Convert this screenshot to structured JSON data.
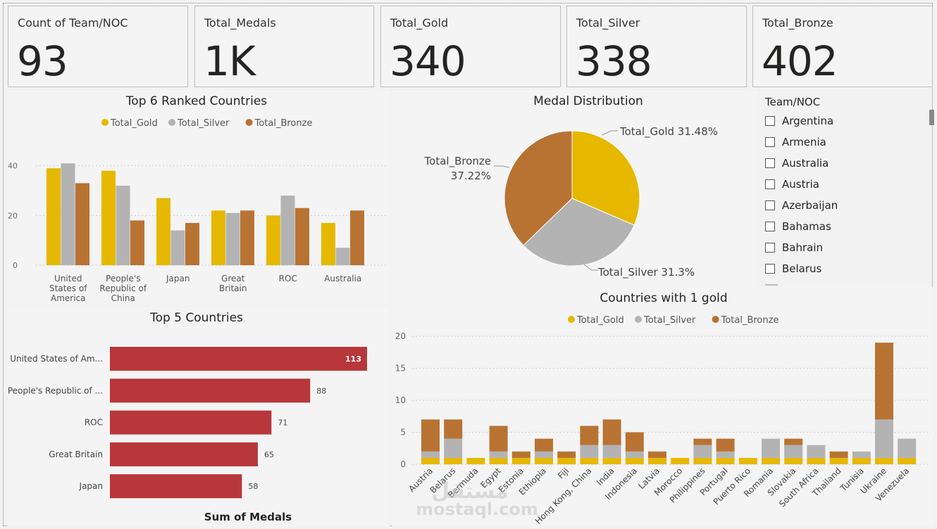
{
  "kpis": [
    {
      "label": "Count of Team/NOC",
      "value": "93"
    },
    {
      "label": "Total_Medals",
      "value": "1K"
    },
    {
      "label": "Total_Gold",
      "value": "340"
    },
    {
      "label": "Total_Silver",
      "value": "338"
    },
    {
      "label": "Total_Bronze",
      "value": "402"
    }
  ],
  "colors": {
    "gold": "#e6b800",
    "silver": "#b3b3b3",
    "bronze": "#b87333",
    "bar": "#b8373a"
  },
  "slicer": {
    "title": "Team/NOC",
    "items": [
      "Argentina",
      "Armenia",
      "Australia",
      "Austria",
      "Azerbaijan",
      "Bahamas",
      "Bahrain",
      "Belarus"
    ]
  },
  "chart_data": [
    {
      "type": "bar",
      "title": "Top 6 Ranked Countries",
      "legend": [
        "Total_Gold",
        "Total_Silver",
        "Total_Bronze"
      ],
      "categories": [
        [
          "United",
          "States of",
          "America"
        ],
        [
          "People's",
          "Republic of",
          "China"
        ],
        [
          "Japan"
        ],
        [
          "Great",
          "Britain"
        ],
        [
          "ROC"
        ],
        [
          "Australia"
        ]
      ],
      "series": [
        {
          "name": "Total_Gold",
          "values": [
            39,
            38,
            27,
            22,
            20,
            17
          ]
        },
        {
          "name": "Total_Silver",
          "values": [
            41,
            32,
            14,
            21,
            28,
            7
          ]
        },
        {
          "name": "Total_Bronze",
          "values": [
            33,
            18,
            17,
            22,
            23,
            22
          ]
        }
      ],
      "yticks": [
        "0",
        "20",
        "40"
      ],
      "ylim": [
        0,
        45
      ],
      "grid": true
    },
    {
      "type": "pie",
      "title": "Medal Distribution",
      "slices": [
        {
          "name": "Total_Gold",
          "value": 340,
          "label": "Total_Gold 31.48%"
        },
        {
          "name": "Total_Silver",
          "value": 338,
          "label": "Total_Silver 31.3%"
        },
        {
          "name": "Total_Bronze",
          "value": 402,
          "label_line1": "Total_Bronze",
          "label_line2": "37.22%"
        }
      ]
    },
    {
      "type": "bar",
      "orientation": "horizontal",
      "title": "Top 5 Countries",
      "xlabel": "Sum of Medals",
      "categories": [
        "United States of Am...",
        "People's Republic of ...",
        "ROC",
        "Great Britain",
        "Japan"
      ],
      "values": [
        113,
        88,
        71,
        65,
        58
      ],
      "value_labels": [
        "113",
        "88",
        "71",
        "65",
        "58"
      ]
    },
    {
      "type": "bar",
      "stacked": true,
      "title": "Countries with 1 gold",
      "legend": [
        "Total_Gold",
        "Total_Silver",
        "Total_Bronze"
      ],
      "categories": [
        "Austria",
        "Belarus",
        "Bermuda",
        "Egypt",
        "Estonia",
        "Ethiopia",
        "Fiji",
        "Hong Kong, China",
        "India",
        "Indonesia",
        "Latvia",
        "Morocco",
        "Philippines",
        "Portugal",
        "Puerto Rico",
        "Romania",
        "Slovakia",
        "South Africa",
        "Thailand",
        "Tunisia",
        "Ukraine",
        "Venezuela"
      ],
      "series": [
        {
          "name": "Total_Gold",
          "values": [
            1,
            1,
            1,
            1,
            1,
            1,
            1,
            1,
            1,
            1,
            1,
            1,
            1,
            1,
            1,
            1,
            1,
            1,
            1,
            1,
            1,
            1
          ]
        },
        {
          "name": "Total_Silver",
          "values": [
            1,
            3,
            0,
            1,
            0,
            1,
            0,
            2,
            2,
            1,
            0,
            0,
            2,
            1,
            0,
            3,
            2,
            2,
            0,
            1,
            6,
            3
          ]
        },
        {
          "name": "Total_Bronze",
          "values": [
            5,
            3,
            0,
            4,
            1,
            2,
            1,
            3,
            4,
            3,
            1,
            0,
            1,
            2,
            0,
            0,
            1,
            0,
            1,
            0,
            12,
            0
          ]
        }
      ],
      "yticks": [
        "0",
        "5",
        "10",
        "15",
        "20"
      ],
      "ylim": [
        0,
        20
      ],
      "grid": true
    }
  ],
  "watermark": {
    "line1": "مستقل",
    "line2": "mostaql.com"
  }
}
